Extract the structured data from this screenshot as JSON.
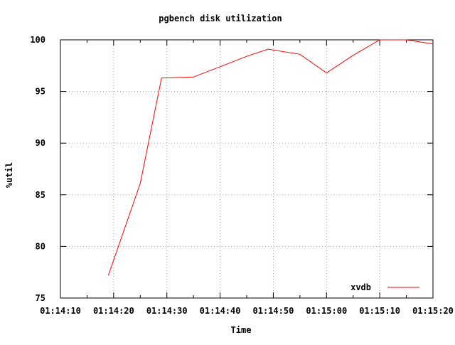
{
  "chart_data": {
    "type": "line",
    "title": "pgbench disk utilization",
    "xlabel": "Time",
    "ylabel": "%util",
    "xlim": [
      "01:14:10",
      "01:15:20"
    ],
    "ylim": [
      75,
      100
    ],
    "x_ticks": [
      "01:14:10",
      "01:14:20",
      "01:14:30",
      "01:14:40",
      "01:14:50",
      "01:15:00",
      "01:15:10",
      "01:15:20"
    ],
    "y_ticks": [
      "75",
      "80",
      "85",
      "90",
      "95",
      "100"
    ],
    "grid": true,
    "legend_position": "bottom-right",
    "series": [
      {
        "name": "xvdb",
        "color": "#ff0000",
        "x": [
          "01:14:19",
          "01:14:25",
          "01:14:29",
          "01:14:35",
          "01:14:40",
          "01:14:45",
          "01:14:49",
          "01:14:55",
          "01:15:00",
          "01:15:05",
          "01:15:10",
          "01:15:15",
          "01:15:20"
        ],
        "y": [
          77.2,
          86.1,
          96.3,
          96.4,
          97.4,
          98.4,
          99.1,
          98.6,
          96.8,
          98.5,
          100.0,
          100.0,
          99.6
        ]
      }
    ]
  }
}
